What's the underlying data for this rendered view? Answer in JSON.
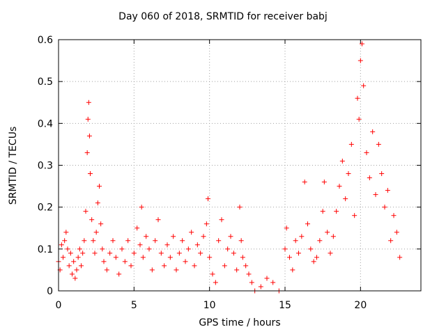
{
  "chart_data": {
    "type": "scatter",
    "title": "Day 060 of 2018, SRMTID for receiver babj",
    "xlabel": "GPS time / hours",
    "ylabel": "SRMTID / TECUs",
    "xlim": [
      0,
      24
    ],
    "ylim": [
      0,
      0.6
    ],
    "xticks": [
      0,
      5,
      10,
      15,
      20
    ],
    "yticks": [
      0,
      0.1,
      0.2,
      0.3,
      0.4,
      0.5,
      0.6
    ],
    "xtick_labels": [
      "0",
      "5",
      "10",
      "15",
      "20"
    ],
    "ytick_labels": [
      "0",
      "0.1",
      "0.2",
      "0.3",
      "0.4",
      "0.5",
      "0.6"
    ],
    "grid": true,
    "marker": "+",
    "series_color": "#ff0000",
    "series": [
      {
        "name": "SRMTID",
        "x": [
          0.0,
          0.1,
          0.2,
          0.3,
          0.4,
          0.5,
          0.6,
          0.7,
          0.8,
          0.9,
          1.0,
          1.1,
          1.2,
          1.3,
          1.4,
          1.5,
          1.6,
          1.7,
          1.8,
          1.9,
          1.95,
          2.0,
          2.05,
          2.1,
          2.2,
          2.3,
          2.4,
          2.5,
          2.6,
          2.7,
          2.8,
          2.9,
          3.0,
          3.2,
          3.4,
          3.6,
          3.8,
          4.0,
          4.2,
          4.4,
          4.6,
          4.8,
          5.0,
          5.2,
          5.4,
          5.5,
          5.6,
          5.8,
          6.0,
          6.2,
          6.4,
          6.6,
          6.8,
          7.0,
          7.2,
          7.4,
          7.6,
          7.8,
          8.0,
          8.2,
          8.4,
          8.6,
          8.8,
          9.0,
          9.2,
          9.4,
          9.6,
          9.8,
          9.9,
          10.0,
          10.2,
          10.4,
          10.6,
          10.8,
          11.0,
          11.2,
          11.4,
          11.6,
          11.8,
          12.0,
          12.1,
          12.2,
          12.4,
          12.6,
          12.8,
          13.0,
          13.4,
          13.8,
          14.2,
          14.6,
          15.0,
          15.1,
          15.3,
          15.5,
          15.7,
          15.9,
          16.1,
          16.3,
          16.5,
          16.7,
          16.9,
          17.1,
          17.3,
          17.5,
          17.6,
          17.8,
          18.0,
          18.2,
          18.4,
          18.6,
          18.8,
          19.0,
          19.2,
          19.4,
          19.6,
          19.8,
          19.9,
          20.0,
          20.1,
          20.2,
          20.4,
          20.6,
          20.8,
          21.0,
          21.2,
          21.4,
          21.6,
          21.8,
          22.0,
          22.2,
          22.4,
          22.6
        ],
        "y": [
          0.07,
          0.05,
          0.11,
          0.08,
          0.12,
          0.14,
          0.1,
          0.06,
          0.09,
          0.04,
          0.07,
          0.03,
          0.05,
          0.08,
          0.1,
          0.06,
          0.09,
          0.12,
          0.19,
          0.33,
          0.41,
          0.45,
          0.37,
          0.28,
          0.17,
          0.12,
          0.09,
          0.14,
          0.21,
          0.25,
          0.16,
          0.1,
          0.07,
          0.05,
          0.09,
          0.12,
          0.08,
          0.04,
          0.1,
          0.07,
          0.12,
          0.06,
          0.09,
          0.15,
          0.11,
          0.2,
          0.08,
          0.13,
          0.1,
          0.05,
          0.12,
          0.17,
          0.09,
          0.06,
          0.11,
          0.08,
          0.13,
          0.05,
          0.09,
          0.12,
          0.07,
          0.1,
          0.14,
          0.06,
          0.11,
          0.09,
          0.13,
          0.16,
          0.22,
          0.08,
          0.04,
          0.02,
          0.12,
          0.17,
          0.06,
          0.1,
          0.13,
          0.09,
          0.05,
          0.2,
          0.12,
          0.08,
          0.06,
          0.04,
          0.02,
          0.0,
          0.01,
          0.03,
          0.02,
          0.0,
          0.1,
          0.15,
          0.08,
          0.05,
          0.12,
          0.09,
          0.13,
          0.26,
          0.16,
          0.1,
          0.07,
          0.08,
          0.12,
          0.19,
          0.26,
          0.14,
          0.09,
          0.13,
          0.19,
          0.25,
          0.31,
          0.22,
          0.28,
          0.35,
          0.18,
          0.46,
          0.41,
          0.55,
          0.59,
          0.49,
          0.33,
          0.27,
          0.38,
          0.23,
          0.35,
          0.28,
          0.2,
          0.24,
          0.12,
          0.18,
          0.14,
          0.08
        ]
      }
    ]
  }
}
